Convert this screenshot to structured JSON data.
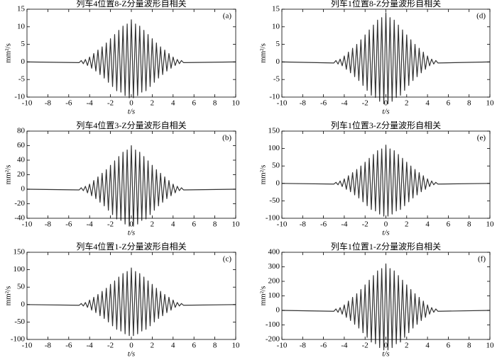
{
  "chart_data": [
    {
      "type": "line",
      "title": "列车4位置8-Z分量波形自相关",
      "panel": "(a)",
      "xlabel": "t/s",
      "ylabel": "mm²/s",
      "color": "#333333",
      "xlim": [
        -10,
        10
      ],
      "xticks": [
        -10,
        -8,
        -6,
        -4,
        -2,
        0,
        2,
        4,
        6,
        8,
        10
      ],
      "ylim": [
        -10,
        15
      ],
      "yticks": [
        -10,
        -5,
        0,
        5,
        10,
        15
      ],
      "x": [
        -10,
        -5,
        -4.8,
        -4.6,
        -4.4,
        -4.2,
        -4,
        -3.8,
        -3.6,
        -3.4,
        -3.2,
        -3,
        -2.8,
        -2.6,
        -2.4,
        -2.2,
        -2,
        -1.8,
        -1.6,
        -1.4,
        -1.2,
        -1,
        -0.8,
        -0.6,
        -0.4,
        -0.2,
        0,
        0.2,
        0.4,
        0.6,
        0.8,
        1,
        1.2,
        1.4,
        1.6,
        1.8,
        2,
        2.2,
        2.4,
        2.6,
        2.8,
        3,
        3.2,
        3.4,
        3.6,
        3.8,
        4,
        4.2,
        4.4,
        4.6,
        4.8,
        5,
        10
      ],
      "values": [
        0,
        -0.2,
        0.4,
        -0.5,
        0.7,
        -1,
        1.4,
        -1.8,
        2.4,
        -2.6,
        3.4,
        -3.6,
        4.3,
        -4.6,
        5.4,
        -5.8,
        6.6,
        -7,
        7.8,
        -8.2,
        9,
        -8.6,
        10.2,
        -9.6,
        10.8,
        -10.2,
        12,
        -10.2,
        10.8,
        -9.6,
        10.2,
        -8.6,
        9,
        -8.2,
        7.8,
        -7,
        6.6,
        -5.8,
        5.4,
        -4.6,
        4.3,
        -3.6,
        3.4,
        -2.6,
        2.4,
        -1.8,
        1.4,
        -1,
        0.7,
        -0.5,
        0.4,
        -0.2,
        0
      ]
    },
    {
      "type": "line",
      "title": "列车4位置3-Z分量波形自相关",
      "panel": "(b)",
      "xlabel": "t/s",
      "ylabel": "mm²/s",
      "color": "#333333",
      "xlim": [
        -10,
        10
      ],
      "xticks": [
        -10,
        -8,
        -6,
        -4,
        -2,
        0,
        2,
        4,
        6,
        8,
        10
      ],
      "ylim": [
        -40,
        80
      ],
      "yticks": [
        -40,
        -20,
        0,
        20,
        40,
        60,
        80
      ],
      "x": [
        -10,
        -5,
        -4.8,
        -4.6,
        -4.4,
        -4.2,
        -4,
        -3.8,
        -3.6,
        -3.4,
        -3.2,
        -3,
        -2.8,
        -2.6,
        -2.4,
        -2.2,
        -2,
        -1.8,
        -1.6,
        -1.4,
        -1.2,
        -1,
        -0.8,
        -0.6,
        -0.4,
        -0.2,
        0,
        0.2,
        0.4,
        0.6,
        0.8,
        1,
        1.2,
        1.4,
        1.6,
        1.8,
        2,
        2.2,
        2.4,
        2.6,
        2.8,
        3,
        3.2,
        3.4,
        3.6,
        3.8,
        4,
        4.2,
        4.4,
        4.6,
        4.8,
        5,
        10
      ],
      "values": [
        0,
        -1,
        2,
        -2,
        4,
        -5,
        7,
        -9,
        12,
        -13,
        17,
        -18,
        22,
        -23,
        27,
        -29,
        33,
        -35,
        39,
        -41,
        45,
        -43,
        51,
        -48,
        54,
        -51,
        60,
        -51,
        54,
        -48,
        51,
        -43,
        45,
        -41,
        39,
        -35,
        33,
        -29,
        27,
        -23,
        22,
        -18,
        17,
        -13,
        12,
        -9,
        7,
        -5,
        4,
        -2,
        2,
        -1,
        0
      ]
    },
    {
      "type": "line",
      "title": "列车4位置1-Z分量波形自相关",
      "panel": "(c)",
      "xlabel": "t/s",
      "ylabel": "mm²/s",
      "color": "#333333",
      "xlim": [
        -10,
        10
      ],
      "xticks": [
        -10,
        -8,
        -6,
        -4,
        -2,
        0,
        2,
        4,
        6,
        8,
        10
      ],
      "ylim": [
        -100,
        150
      ],
      "yticks": [
        -100,
        -50,
        0,
        50,
        100,
        150
      ],
      "x": [
        -10,
        -5,
        -4.8,
        -4.6,
        -4.4,
        -4.2,
        -4,
        -3.8,
        -3.6,
        -3.4,
        -3.2,
        -3,
        -2.8,
        -2.6,
        -2.4,
        -2.2,
        -2,
        -1.8,
        -1.6,
        -1.4,
        -1.2,
        -1,
        -0.8,
        -0.6,
        -0.4,
        -0.2,
        0,
        0.2,
        0.4,
        0.6,
        0.8,
        1,
        1.2,
        1.4,
        1.6,
        1.8,
        2,
        2.2,
        2.4,
        2.6,
        2.8,
        3,
        3.2,
        3.4,
        3.6,
        3.8,
        4,
        4.2,
        4.4,
        4.6,
        4.8,
        5,
        10
      ],
      "values": [
        0,
        -2,
        3,
        -4,
        6,
        -8,
        13,
        -16,
        21,
        -23,
        29,
        -32,
        38,
        -40,
        47,
        -50,
        58,
        -61,
        68,
        -71,
        79,
        -76,
        89,
        -84,
        95,
        -89,
        105,
        -89,
        95,
        -84,
        89,
        -76,
        79,
        -71,
        68,
        -61,
        58,
        -50,
        47,
        -40,
        38,
        -32,
        29,
        -23,
        21,
        -16,
        13,
        -8,
        6,
        -4,
        3,
        -2,
        0
      ]
    },
    {
      "type": "line",
      "title": "列车1位置8-Z分量波形自相关",
      "panel": "(d)",
      "xlabel": "t/s",
      "ylabel": "mm²/s",
      "color": "#333333",
      "xlim": [
        -10,
        10
      ],
      "xticks": [
        -10,
        -8,
        -6,
        -4,
        -2,
        0,
        2,
        4,
        6,
        8,
        10
      ],
      "ylim": [
        -10,
        15
      ],
      "yticks": [
        -10,
        -5,
        0,
        5,
        10,
        15
      ],
      "x": [
        -10,
        -5,
        -4.8,
        -4.6,
        -4.4,
        -4.2,
        -4,
        -3.8,
        -3.6,
        -3.4,
        -3.2,
        -3,
        -2.8,
        -2.6,
        -2.4,
        -2.2,
        -2,
        -1.8,
        -1.6,
        -1.4,
        -1.2,
        -1,
        -0.8,
        -0.6,
        -0.4,
        -0.2,
        0,
        0.2,
        0.4,
        0.6,
        0.8,
        1,
        1.2,
        1.4,
        1.6,
        1.8,
        2,
        2.2,
        2.4,
        2.6,
        2.8,
        3,
        3.2,
        3.4,
        3.6,
        3.8,
        4,
        4.2,
        4.4,
        4.6,
        4.8,
        5,
        10
      ],
      "values": [
        0,
        -0.3,
        0.4,
        -0.6,
        0.8,
        -1.1,
        1.7,
        -2.1,
        2.8,
        -3.1,
        3.9,
        -4.2,
        5,
        -5.3,
        6.3,
        -6.7,
        7.7,
        -8.1,
        9.1,
        -9.5,
        10.5,
        -10.1,
        11.9,
        -11.2,
        12.6,
        -11.9,
        14,
        -11.9,
        12.6,
        -11.2,
        11.9,
        -10.1,
        10.5,
        -9.5,
        9.1,
        -8.1,
        7.7,
        -6.7,
        6.3,
        -5.3,
        5,
        -4.2,
        3.9,
        -3.1,
        2.8,
        -2.1,
        1.7,
        -1.1,
        0.8,
        -0.6,
        0.4,
        -0.3,
        0
      ]
    },
    {
      "type": "line",
      "title": "列车1位置3-Z分量波形自相关",
      "panel": "(e)",
      "xlabel": "t/s",
      "ylabel": "mm²/s",
      "color": "#333333",
      "xlim": [
        -10,
        10
      ],
      "xticks": [
        -10,
        -8,
        -6,
        -4,
        -2,
        0,
        2,
        4,
        6,
        8,
        10
      ],
      "ylim": [
        -100,
        150
      ],
      "yticks": [
        -100,
        -50,
        0,
        50,
        100,
        150
      ],
      "x": [
        -10,
        -5,
        -4.8,
        -4.6,
        -4.4,
        -4.2,
        -4,
        -3.8,
        -3.6,
        -3.4,
        -3.2,
        -3,
        -2.8,
        -2.6,
        -2.4,
        -2.2,
        -2,
        -1.8,
        -1.6,
        -1.4,
        -1.2,
        -1,
        -0.8,
        -0.6,
        -0.4,
        -0.2,
        0,
        0.2,
        0.4,
        0.6,
        0.8,
        1,
        1.2,
        1.4,
        1.6,
        1.8,
        2,
        2.2,
        2.4,
        2.6,
        2.8,
        3,
        3.2,
        3.4,
        3.6,
        3.8,
        4,
        4.2,
        4.4,
        4.6,
        4.8,
        5,
        10
      ],
      "values": [
        0,
        -2,
        3,
        -4,
        7,
        -9,
        13,
        -17,
        22,
        -24,
        31,
        -33,
        40,
        -42,
        50,
        -53,
        61,
        -64,
        72,
        -75,
        83,
        -79,
        94,
        -88,
        99,
        -94,
        110,
        -94,
        99,
        -88,
        94,
        -79,
        83,
        -75,
        72,
        -64,
        61,
        -53,
        50,
        -42,
        40,
        -33,
        31,
        -24,
        22,
        -17,
        13,
        -9,
        7,
        -4,
        3,
        -2,
        0
      ]
    },
    {
      "type": "line",
      "title": "列车1位置1-Z分量波形自相关",
      "panel": "(f)",
      "xlabel": "t/s",
      "ylabel": "mm²/s",
      "color": "#333333",
      "xlim": [
        -10,
        10
      ],
      "xticks": [
        -10,
        -8,
        -6,
        -4,
        -2,
        0,
        2,
        4,
        6,
        8,
        10
      ],
      "ylim": [
        -200,
        400
      ],
      "yticks": [
        -200,
        -100,
        0,
        100,
        200,
        300,
        400
      ],
      "x": [
        -10,
        -5,
        -4.8,
        -4.6,
        -4.4,
        -4.2,
        -4,
        -3.8,
        -3.6,
        -3.4,
        -3.2,
        -3,
        -2.8,
        -2.6,
        -2.4,
        -2.2,
        -2,
        -1.8,
        -1.6,
        -1.4,
        -1.2,
        -1,
        -0.8,
        -0.6,
        -0.4,
        -0.2,
        0,
        0.2,
        0.4,
        0.6,
        0.8,
        1,
        1.2,
        1.4,
        1.6,
        1.8,
        2,
        2.2,
        2.4,
        2.6,
        2.8,
        3,
        3.2,
        3.4,
        3.6,
        3.8,
        4,
        4.2,
        4.4,
        4.6,
        4.8,
        5,
        10
      ],
      "values": [
        0,
        -6,
        10,
        -13,
        19,
        -26,
        38,
        -48,
        64,
        -70,
        90,
        -96,
        115,
        -122,
        144,
        -154,
        176,
        -186,
        208,
        -218,
        240,
        -230,
        272,
        -256,
        288,
        -272,
        320,
        -272,
        288,
        -256,
        272,
        -230,
        240,
        -218,
        208,
        -186,
        176,
        -154,
        144,
        -122,
        115,
        -96,
        90,
        -70,
        64,
        -48,
        38,
        -26,
        19,
        -13,
        10,
        -6,
        0
      ]
    }
  ]
}
